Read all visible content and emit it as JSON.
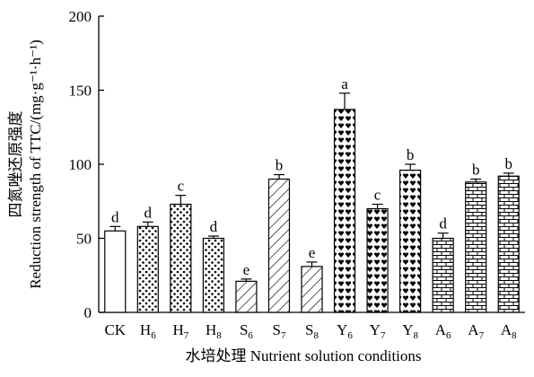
{
  "chart_data": {
    "type": "bar",
    "xlabel": "水培处理 Nutrient solution conditions",
    "ylabel_line1": "四氮唑还原强度",
    "ylabel_line2": "Reduction strength of TTC/(mg·g⁻¹·h⁻¹)",
    "ylim": [
      0,
      200
    ],
    "yticks": [
      0,
      50,
      100,
      150,
      200
    ],
    "grid": false,
    "categories": [
      {
        "main": "CK",
        "sub": ""
      },
      {
        "main": "H",
        "sub": "6"
      },
      {
        "main": "H",
        "sub": "7"
      },
      {
        "main": "H",
        "sub": "8"
      },
      {
        "main": "S",
        "sub": "6"
      },
      {
        "main": "S",
        "sub": "7"
      },
      {
        "main": "S",
        "sub": "8"
      },
      {
        "main": "Y",
        "sub": "6"
      },
      {
        "main": "Y",
        "sub": "7"
      },
      {
        "main": "Y",
        "sub": "8"
      },
      {
        "main": "A",
        "sub": "6"
      },
      {
        "main": "A",
        "sub": "7"
      },
      {
        "main": "A",
        "sub": "8"
      }
    ],
    "values": [
      55,
      58,
      73,
      50,
      21,
      90,
      31,
      137,
      70,
      96,
      50,
      88,
      92
    ],
    "errors": [
      3,
      3,
      6,
      1.5,
      1.5,
      3,
      3,
      11,
      3,
      4,
      3.5,
      2,
      2
    ],
    "significance": [
      "d",
      "d",
      "c",
      "d",
      "e",
      "b",
      "e",
      "a",
      "c",
      "b",
      "d",
      "b",
      "b"
    ],
    "fills": [
      "none",
      "dots",
      "dots",
      "dots",
      "hatch",
      "hatch",
      "hatch",
      "hearts",
      "hearts",
      "hearts",
      "bricks",
      "bricks",
      "bricks"
    ]
  }
}
